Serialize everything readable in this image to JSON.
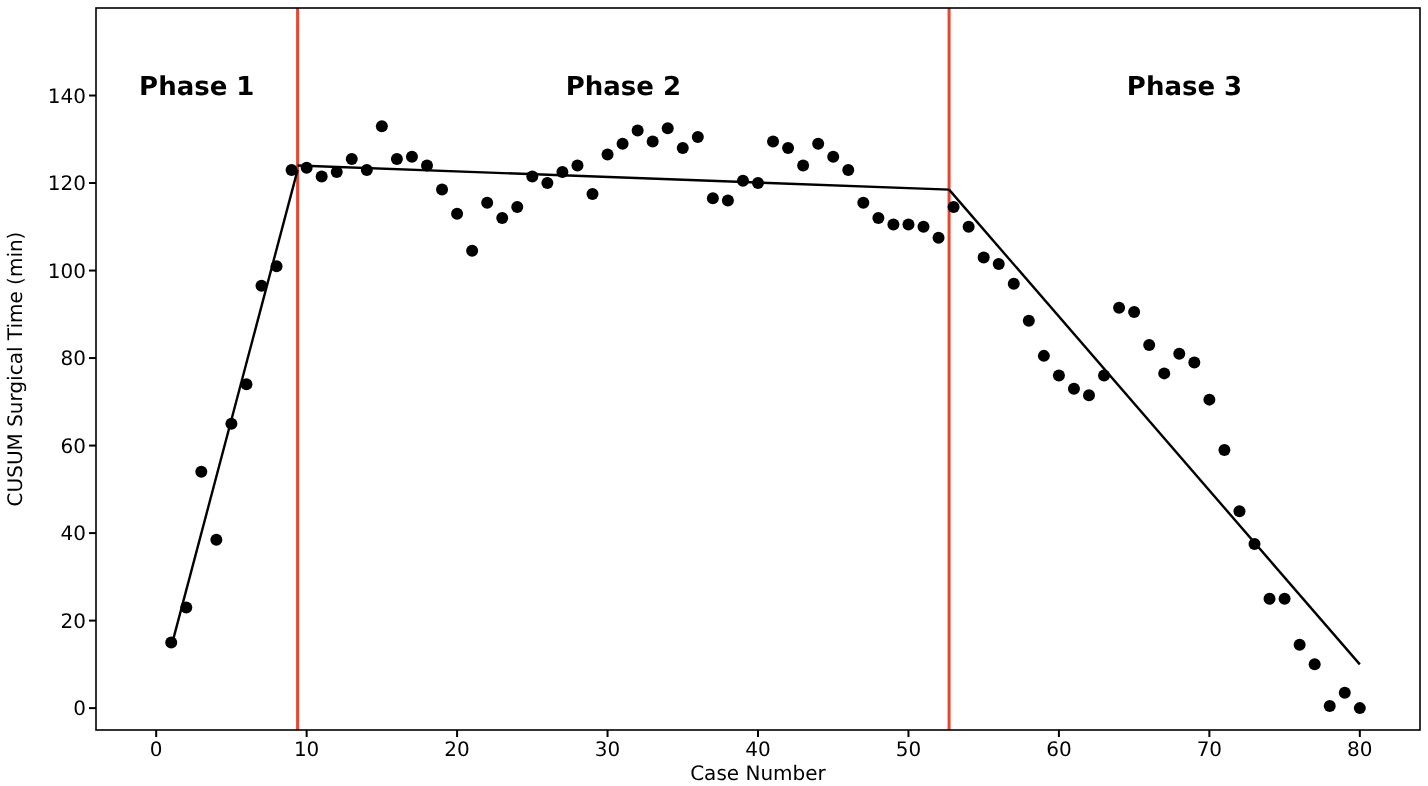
{
  "chart_data": {
    "type": "scatter",
    "xlabel": "Case Number",
    "ylabel": "CUSUM Surgical Time (min)",
    "xlim": [
      -4,
      84
    ],
    "ylim": [
      -5,
      160
    ],
    "xticks": [
      0,
      10,
      20,
      30,
      40,
      50,
      60,
      70,
      80
    ],
    "yticks": [
      0,
      20,
      40,
      60,
      80,
      100,
      120,
      140
    ],
    "grid": false,
    "series": [
      {
        "color": "#000000",
        "marker": "circle",
        "x": [
          1,
          2,
          3,
          4,
          5,
          6,
          7,
          8,
          9,
          10,
          11,
          12,
          13,
          14,
          15,
          16,
          17,
          18,
          19,
          20,
          21,
          22,
          23,
          24,
          25,
          26,
          27,
          28,
          29,
          30,
          31,
          32,
          33,
          34,
          35,
          36,
          37,
          38,
          39,
          40,
          41,
          42,
          43,
          44,
          45,
          46,
          47,
          48,
          49,
          50,
          51,
          52,
          53,
          54,
          55,
          56,
          57,
          58,
          59,
          60,
          61,
          62,
          63,
          64,
          65,
          66,
          67,
          68,
          69,
          70,
          71,
          72,
          73,
          74,
          75,
          76,
          77,
          78,
          79,
          80
        ],
        "values": [
          15,
          23,
          54,
          38.5,
          65,
          74,
          96.5,
          101,
          123,
          123.5,
          121.5,
          122.5,
          125.5,
          123,
          133,
          125.5,
          126,
          124,
          118.5,
          113,
          104.5,
          115.5,
          112,
          114.5,
          121.5,
          120,
          122.5,
          124,
          117.5,
          126.5,
          129,
          132,
          129.5,
          132.5,
          128,
          130.5,
          116.5,
          116,
          120.5,
          120,
          129.5,
          128,
          124,
          129,
          126,
          123,
          115.5,
          112,
          110.5,
          110.5,
          110,
          107.5,
          114.5,
          110,
          103,
          101.5,
          97,
          88.5,
          80.5,
          76,
          73,
          71.5,
          76,
          91.5,
          90.5,
          83,
          76.5,
          81,
          79,
          70.5,
          59,
          45,
          37.5,
          25,
          25,
          14.5,
          10,
          0.5,
          3.5,
          0
        ]
      },
      {
        "type": "line",
        "color": "#000000",
        "marker": "none",
        "line_style": "solid",
        "x": [
          1,
          9.4
        ],
        "values": [
          14,
          123
        ]
      },
      {
        "type": "line",
        "color": "#000000",
        "marker": "none",
        "line_style": "solid",
        "x": [
          9.4,
          52.7
        ],
        "values": [
          124,
          118.5
        ]
      },
      {
        "type": "line",
        "color": "#000000",
        "marker": "none",
        "line_style": "solid",
        "x": [
          52.7,
          80
        ],
        "values": [
          118.5,
          10
        ]
      }
    ],
    "ref_lines": [
      {
        "axis": "x",
        "value": 9.4,
        "color": "#e8442e"
      },
      {
        "axis": "x",
        "value": 52.7,
        "color": "#e8442e"
      }
    ],
    "annotations": [
      "Phase 1",
      "Phase 2",
      "Phase 3"
    ]
  }
}
